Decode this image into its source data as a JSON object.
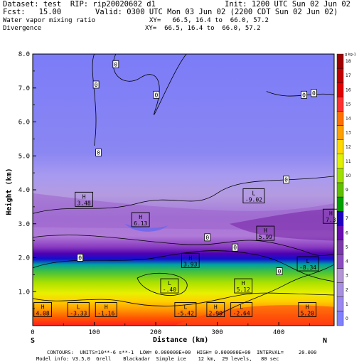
{
  "header": {
    "dataset": "Dataset: test  RIP: rip20020602 d1",
    "init": "Init: 1200 UTC Sun 02 Jun 02",
    "fcst": "Fcst:   15.00",
    "valid": "Valid: 0300 UTC Mon 03 Jun 02 (2200 CDT Sun 02 Jun 02)",
    "field1": "Water vapor mixing ratio",
    "field2": "Divergence",
    "xy1": "XY=   66.5, 16.4 to  66.0, 57.2",
    "xy2": "XY=  66.5, 16.4 to  66.0, 57.2"
  },
  "footer": {
    "line1": "CONTOURS:  UNITS=10**-6 s**-1  LOW= 0.000000E+00  HIGH= 0.000000E+00  INTERVAL=     20.000",
    "line2": "Model info: V3.5.0  Grell    Blackadar  Simple ice    12 km,  29 levels,   80 sec"
  },
  "chart_data": {
    "type": "heatmap",
    "xlabel": "Distance (km)",
    "ylabel": "Height (km)",
    "x_ticks": [
      "0",
      "100",
      "200",
      "300",
      "400"
    ],
    "y_ticks": [
      "1.0",
      "2.0",
      "3.0",
      "4.0",
      "5.0",
      "6.0",
      "7.0",
      "8.0"
    ],
    "xlim": [
      0,
      490
    ],
    "ylim": [
      0,
      8.0
    ],
    "x_ends": {
      "left": "S",
      "right": "N"
    },
    "colorbar_unit": "g kg-1",
    "colorbar_levels": [
      "0",
      "1",
      "2",
      "3",
      "4",
      "5",
      "6",
      "7",
      "8",
      "9",
      "10",
      "11",
      "12",
      "13",
      "14",
      "15",
      "16",
      "17",
      "18"
    ],
    "colorbar_colors": [
      "#8080ff",
      "#9a88f0",
      "#a890e0",
      "#b496d6",
      "#8c4cc0",
      "#7a38a8",
      "#6a0cb0",
      "#2000c0",
      "#00a000",
      "#60c000",
      "#a0e000",
      "#e0f000",
      "#ffd800",
      "#ffa000",
      "#ff7000",
      "#ff3030",
      "#e00000",
      "#c00000",
      "#a00000"
    ],
    "contour_labels": [
      {
        "text": "0",
        "x": 135,
        "y": 7.7
      },
      {
        "text": "0",
        "x": 103,
        "y": 7.1
      },
      {
        "text": "0",
        "x": 201,
        "y": 6.8
      },
      {
        "text": "0",
        "x": 441,
        "y": 6.8
      },
      {
        "text": "0",
        "x": 457,
        "y": 6.85
      },
      {
        "text": "0",
        "x": 107,
        "y": 5.1
      },
      {
        "text": "0",
        "x": 412,
        "y": 4.3
      },
      {
        "text": "0",
        "x": 284,
        "y": 2.6
      },
      {
        "text": "0",
        "x": 329,
        "y": 2.3
      },
      {
        "text": "0",
        "x": 77,
        "y": 2.0
      },
      {
        "text": "0",
        "x": 401,
        "y": 1.6
      }
    ],
    "extrema": [
      {
        "type": "H",
        "value": "3.48",
        "x": 69,
        "y": 3.7
      },
      {
        "type": "L",
        "value": "-9.02",
        "x": 342,
        "y": 3.8
      },
      {
        "type": "H",
        "value": "6.13",
        "x": 161,
        "y": 3.1
      },
      {
        "type": "H",
        "value": "7.3",
        "x": 472,
        "y": 3.2
      },
      {
        "type": "H",
        "value": "5.99",
        "x": 364,
        "y": 2.7
      },
      {
        "type": "H",
        "value": "3.93",
        "x": 242,
        "y": 1.9
      },
      {
        "type": "L",
        "value": "-8.34",
        "x": 430,
        "y": 1.8
      },
      {
        "type": "L",
        "value": "-.40",
        "x": 208,
        "y": 1.15
      },
      {
        "type": "H",
        "value": "5.12",
        "x": 328,
        "y": 1.15
      },
      {
        "type": "H",
        "value": "4.08",
        "x": 2,
        "y": 0.45
      },
      {
        "type": "L",
        "value": "-3.33",
        "x": 57,
        "y": 0.45
      },
      {
        "type": "H",
        "value": "-1.16",
        "x": 102,
        "y": 0.45
      },
      {
        "type": "L",
        "value": "-5.42",
        "x": 231,
        "y": 0.45
      },
      {
        "type": "H",
        "value": "2.90",
        "x": 283,
        "y": 0.45
      },
      {
        "type": "L",
        "value": "-2.64",
        "x": 322,
        "y": 0.45
      },
      {
        "type": "H",
        "value": "5.20",
        "x": 432,
        "y": 0.45
      }
    ]
  }
}
